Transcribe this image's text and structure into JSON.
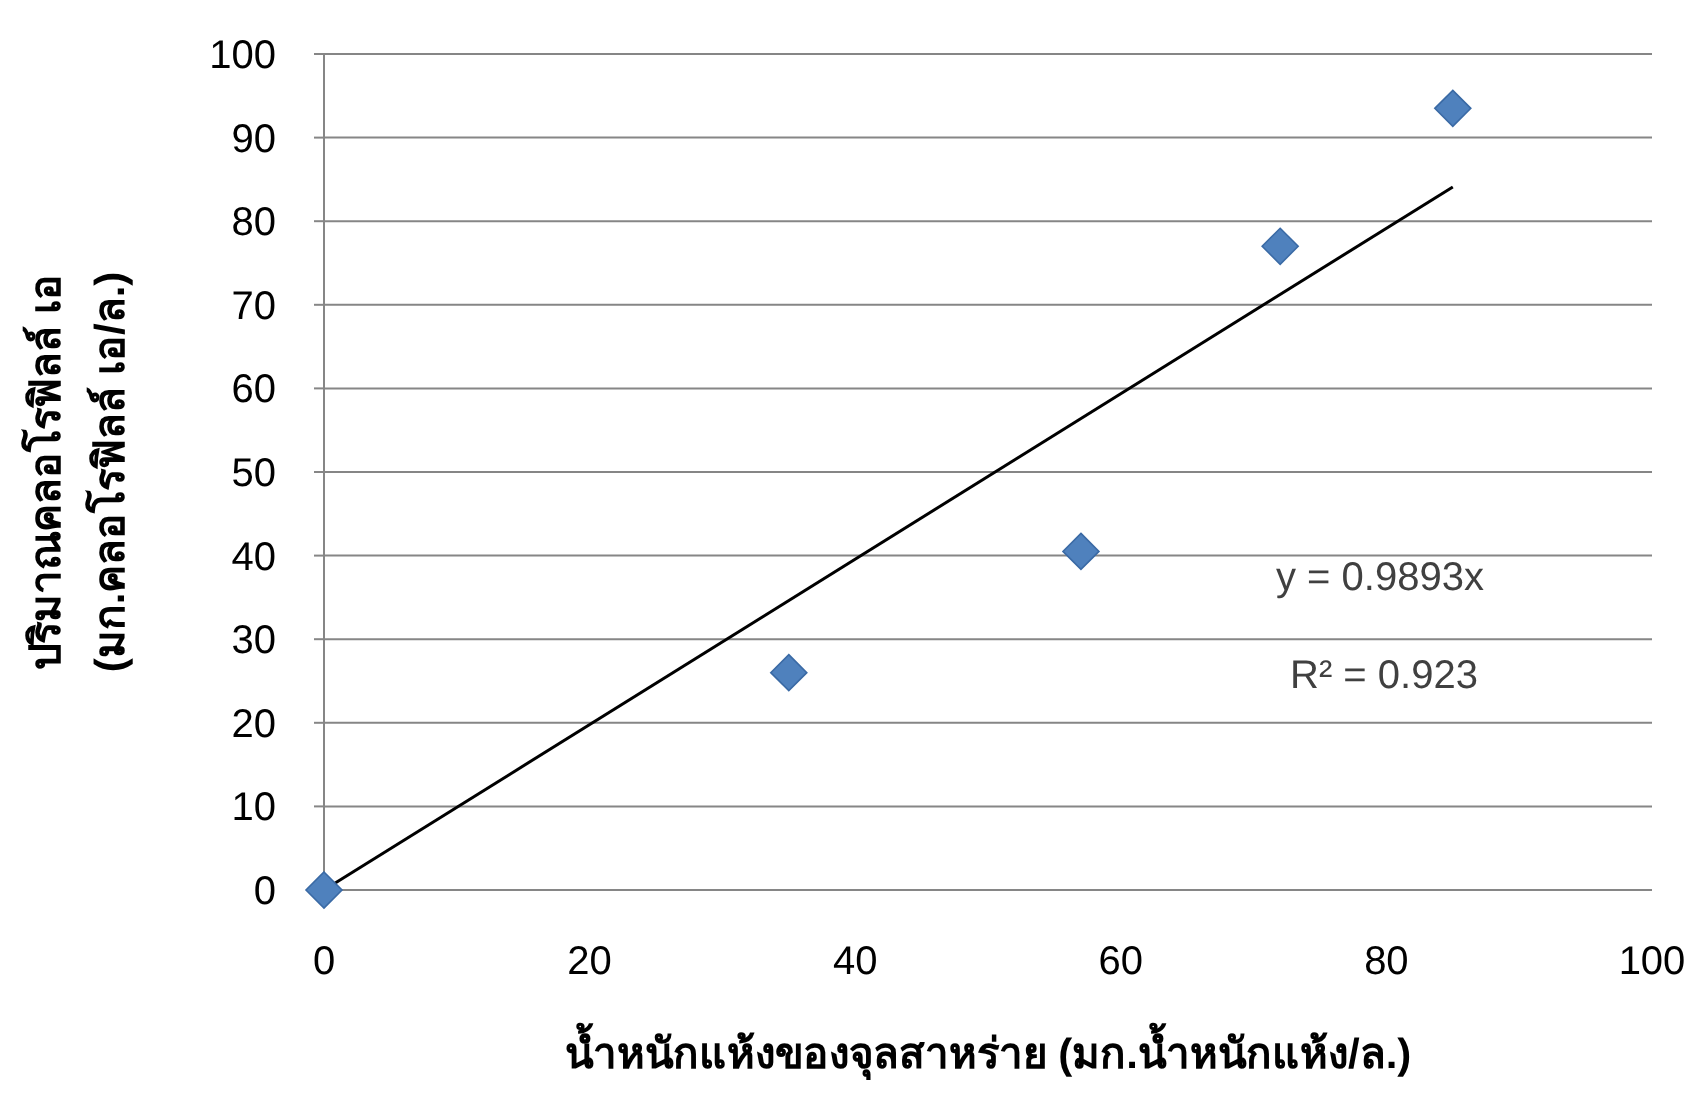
{
  "chart_data": {
    "type": "scatter",
    "xlabel": "น้ำหนักแห้งของจุลสาหร่าย (มก.น้ำหนักแห้ง/ล.)",
    "ylabel": "ปริมาณคลอโรฟิลล์ เอ\n(มก.คลอโรฟิลล์ เอ/ล.)",
    "annotations": [
      "y = 0.9893x",
      "R² = 0.923"
    ],
    "xlim": [
      0,
      100
    ],
    "xticks": [
      0,
      20,
      40,
      60,
      80,
      100
    ],
    "ylim": [
      0,
      100
    ],
    "yticks": [
      0,
      10,
      20,
      30,
      40,
      50,
      60,
      70,
      80,
      90,
      100
    ],
    "grid": "y",
    "marker": "diamond",
    "series": [
      {
        "color": "#4f81bd",
        "x": [
          0,
          35,
          57,
          72,
          85
        ],
        "values": [
          0,
          26,
          40.5,
          77,
          93.5
        ]
      },
      {
        "type": "line",
        "color": "#000000",
        "marker": "none",
        "x": [
          0,
          85
        ],
        "values": [
          0,
          84.1
        ]
      }
    ]
  }
}
